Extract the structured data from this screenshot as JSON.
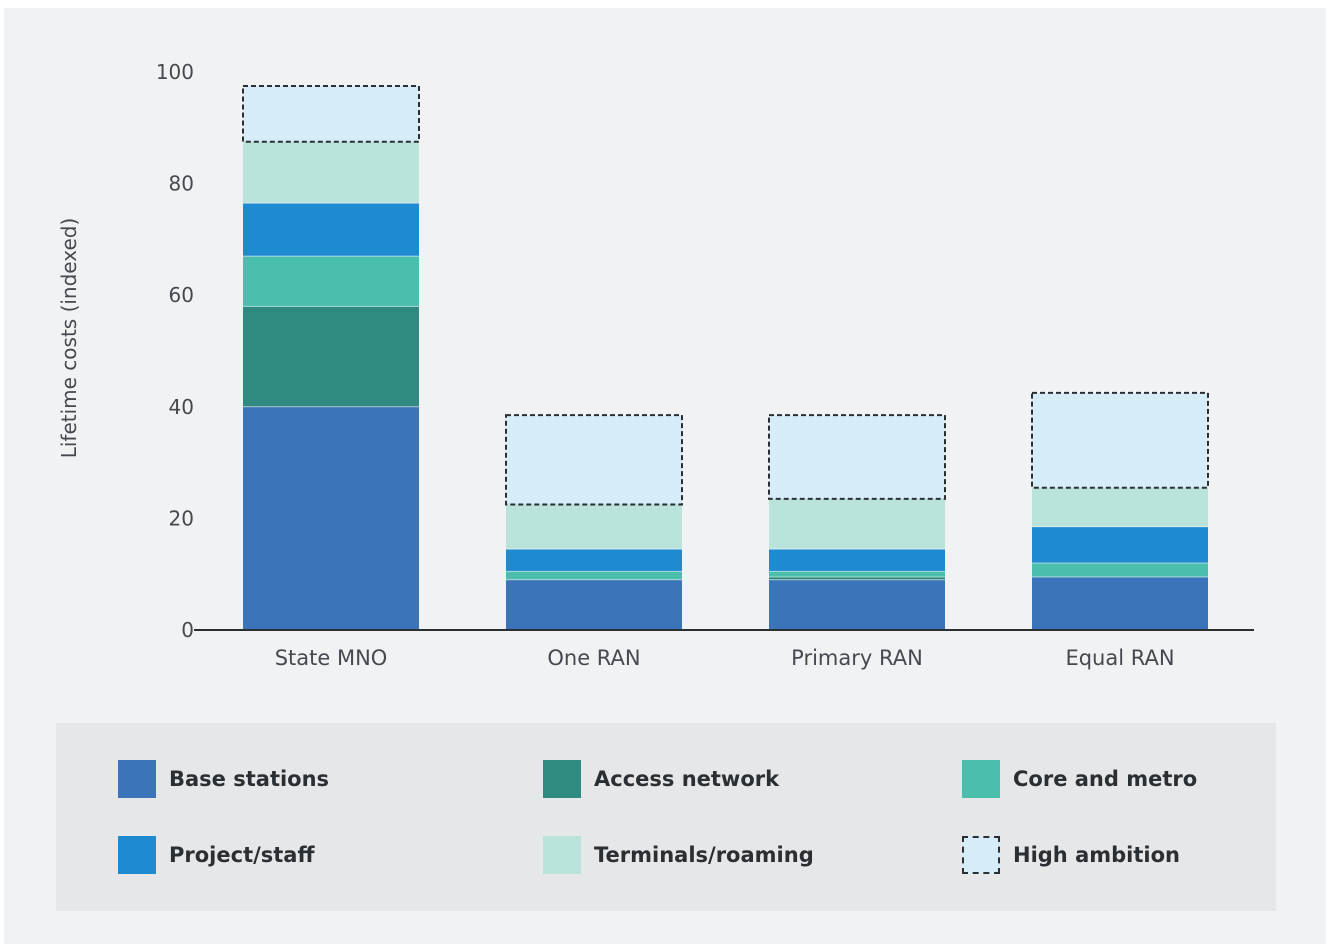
{
  "chart_data": {
    "type": "bar",
    "stacked": true,
    "title": "",
    "xlabel": "",
    "ylabel": "Lifetime costs (indexed)",
    "ylim": [
      0,
      100
    ],
    "yticks": [
      0,
      20,
      40,
      60,
      80,
      100
    ],
    "categories": [
      "State MNO",
      "One RAN",
      "Primary RAN",
      "Equal RAN"
    ],
    "series": [
      {
        "name": "Base stations",
        "color": "#3b74b8",
        "values": [
          40,
          9,
          9,
          9.5
        ]
      },
      {
        "name": "Access network",
        "color": "#2f8a7f",
        "values": [
          18,
          0,
          0.5,
          0
        ]
      },
      {
        "name": "Core and metro",
        "color": "#4bbfae",
        "values": [
          9,
          1.5,
          1,
          2.5
        ]
      },
      {
        "name": "Project/staff",
        "color": "#1e8bd1",
        "values": [
          9.5,
          4,
          4,
          6.5
        ]
      },
      {
        "name": "Terminals/roaming",
        "color": "#b9e3db",
        "values": [
          11,
          8,
          9,
          7
        ]
      },
      {
        "name": "High ambition",
        "color": "#d6ecf9",
        "dashed": true,
        "values": [
          10,
          16,
          15,
          17
        ]
      }
    ],
    "grid": false,
    "legend_position": "bottom"
  },
  "legend": {
    "items": [
      {
        "label": "Base stations",
        "color": "#3b74b8",
        "dashed": false
      },
      {
        "label": "Access network",
        "color": "#2f8a7f",
        "dashed": false
      },
      {
        "label": "Core and metro",
        "color": "#4bbfae",
        "dashed": false
      },
      {
        "label": "Project/staff",
        "color": "#1e8bd1",
        "dashed": false
      },
      {
        "label": "Terminals/roaming",
        "color": "#b9e3db",
        "dashed": false
      },
      {
        "label": "High ambition",
        "color": "#d6ecf9",
        "dashed": true
      }
    ]
  }
}
